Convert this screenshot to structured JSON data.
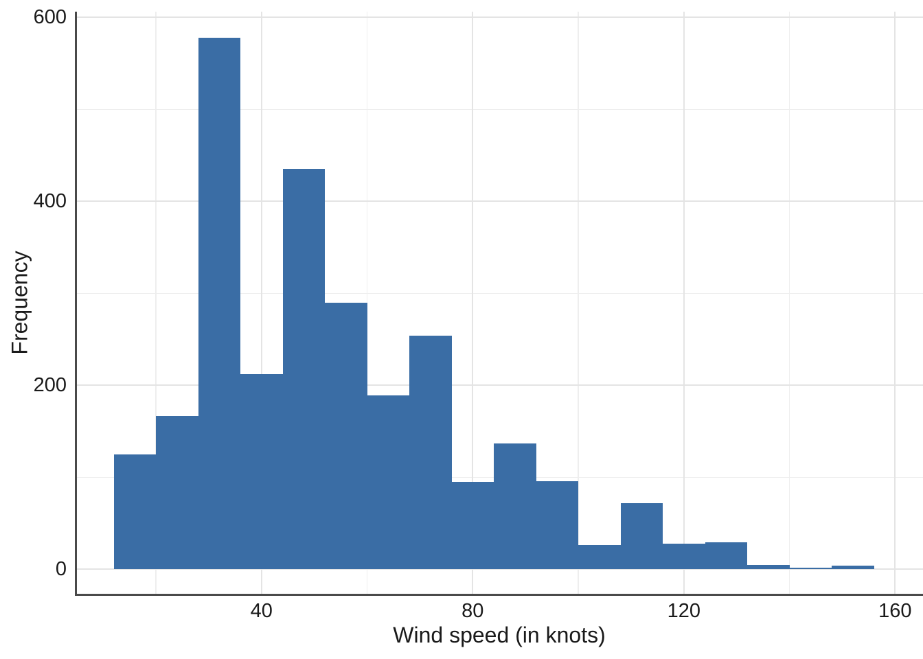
{
  "figure": {
    "xlabel": "Wind speed (in knots)",
    "ylabel": "Frequency",
    "x_tick_labels": [
      "40",
      "80",
      "120",
      "160"
    ],
    "y_tick_labels": [
      "0",
      "200",
      "400",
      "600"
    ],
    "colors": {
      "bar": "#3a6da5",
      "axis_line": "#4a4a4a",
      "grid_major": "#e4e4e4",
      "grid_minor": "#eeeeee",
      "text": "#1a1a1a",
      "background": "#ffffff"
    }
  },
  "chart_data": {
    "type": "bar",
    "subtype": "histogram",
    "title": "",
    "xlabel": "Wind speed (in knots)",
    "ylabel": "Frequency",
    "bin_width": 8,
    "bin_edges": [
      12,
      20,
      28,
      36,
      44,
      52,
      60,
      68,
      76,
      84,
      92,
      100,
      108,
      116,
      124,
      132,
      140,
      148,
      156
    ],
    "values": [
      125,
      167,
      578,
      212,
      435,
      290,
      189,
      254,
      95,
      137,
      96,
      26,
      72,
      28,
      29,
      5,
      2,
      4
    ],
    "x_ticks_major": [
      40,
      80,
      120,
      160
    ],
    "x_ticks_minor": [
      20,
      60,
      100,
      140
    ],
    "y_ticks_major": [
      0,
      200,
      400,
      600
    ],
    "y_ticks_minor": [
      100,
      300,
      500
    ],
    "xlim": [
      4.7,
      165.3
    ],
    "ylim": [
      0,
      606
    ],
    "grid": "major+minor",
    "legend_position": "none",
    "bar_color": "#3a6da5"
  }
}
